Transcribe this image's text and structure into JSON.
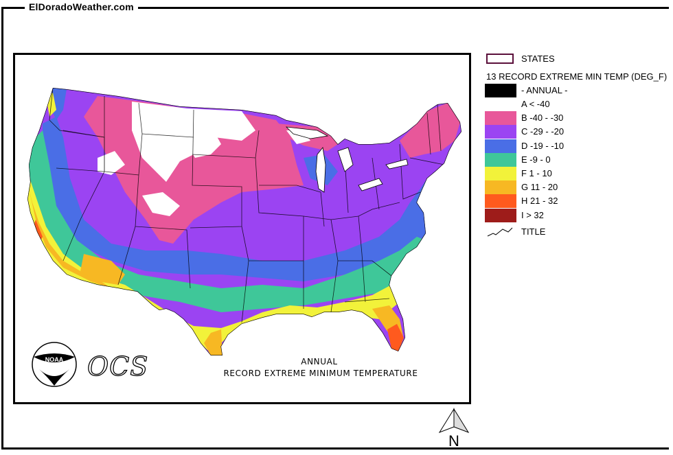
{
  "site_label": "ElDoradoWeather.com",
  "captions": {
    "line1": "ANNUAL",
    "line2": "RECORD EXTREME MINIMUM TEMPERATURE"
  },
  "logo": {
    "agency": "NOAA",
    "office": "OCS"
  },
  "legend": {
    "states_label": "STATES",
    "title": "13 RECORD EXTREME MIN TEMP (DEG_F)",
    "annual_label": "- ANNUAL -",
    "classes": [
      {
        "label": "A < -40",
        "color": "#000000"
      },
      {
        "label": "B -40 - -30",
        "color": "#e8579a"
      },
      {
        "label": "C -29 - -20",
        "color": "#9b44f2"
      },
      {
        "label": "D -19 - -10",
        "color": "#4a6ee6"
      },
      {
        "label": "E -9 - 0",
        "color": "#3fc799"
      },
      {
        "label": "F 1 - 10",
        "color": "#f2f23a"
      },
      {
        "label": "G 11 - 20",
        "color": "#f7b823"
      },
      {
        "label": "H 21 - 32",
        "color": "#ff5a1e"
      },
      {
        "label": "I > 32",
        "color": "#9e1c1a"
      }
    ],
    "title_symbol_label": "TITLE"
  },
  "north_label": "N"
}
